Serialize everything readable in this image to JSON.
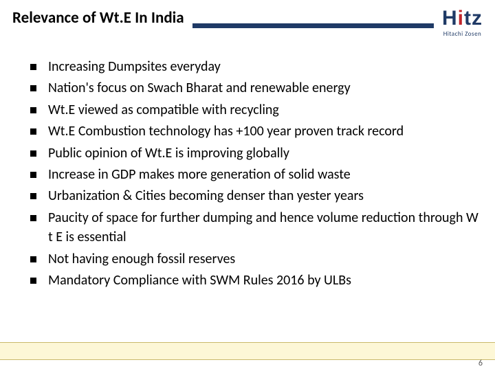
{
  "title": "Relevance of Wt.E In India",
  "logo": {
    "main": "Hitz",
    "sub": "Hitachi Zosen"
  },
  "bullets": [
    "Increasing Dumpsites everyday",
    "Nation's focus on Swach Bharat and renewable energy",
    "Wt.E viewed as compatible with recycling",
    "Wt.E Combustion technology has +100 year proven track record",
    "Public opinion of Wt.E is improving globally",
    "Increase in GDP makes more generation of solid waste",
    "Urbanization & Cities becoming denser than yester years",
    "Paucity of space for further dumping and hence volume reduction through W t E is essential",
    "Not having enough fossil reserves",
    "Mandatory Compliance with SWM Rules 2016 by ULBs"
  ],
  "page_number": "6",
  "colors": {
    "rule": "#1f3a66",
    "logo_text": "#1f3a66",
    "logo_accent": "#c1272d",
    "footer_bg": "#fdf7d6",
    "footer_border": "#c9b96a"
  },
  "typography": {
    "title_fontsize": 23,
    "title_weight": 700,
    "bullet_fontsize": 20,
    "logo_main_fontsize": 30,
    "logo_sub_fontsize": 9,
    "page_num_fontsize": 12
  },
  "layout": {
    "slide_width": 720,
    "slide_height": 540,
    "rule_height": 7,
    "bullet_marker_size": 9
  }
}
